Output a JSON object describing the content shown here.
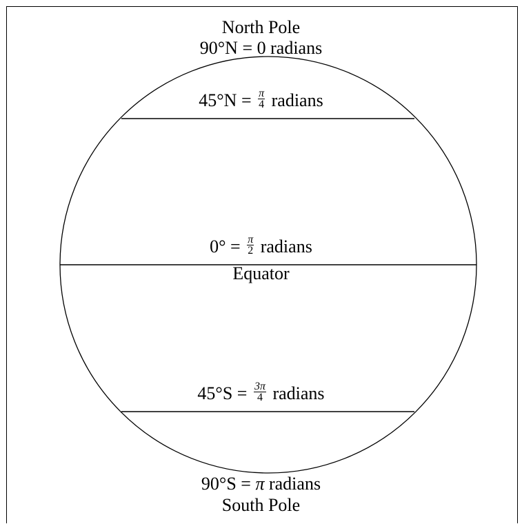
{
  "north": {
    "name": "North Pole",
    "left": "90°N = ",
    "value": "0",
    "unit": " radians"
  },
  "lat45n": {
    "left": "45°N = ",
    "num": "π",
    "den": "4",
    "unit": " radians"
  },
  "equator": {
    "left": "0° = ",
    "num": "π",
    "den": "2",
    "unit": " radians",
    "name": "Equator"
  },
  "lat45s": {
    "left": "45°S = ",
    "num": "3π",
    "den": "4",
    "unit": " radians"
  },
  "south": {
    "left": "90°S = ",
    "value": "π",
    "unit": " radians",
    "name": "South Pole"
  }
}
